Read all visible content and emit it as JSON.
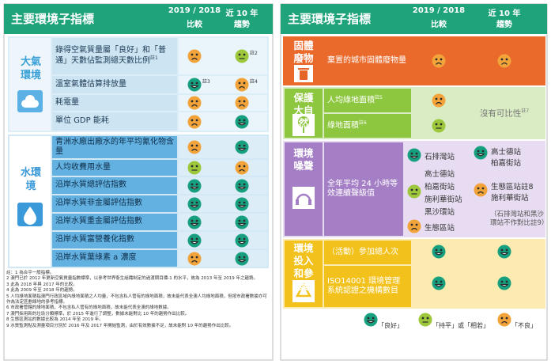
{
  "left": {
    "header": {
      "title": "主要環境子指標",
      "compare": "2019 / 2018",
      "compare_sub": "比較",
      "trend": "近 10 年",
      "trend_sub": "趨勢"
    },
    "sections": [
      {
        "label": "大氣環境",
        "rows": [
          {
            "text": "錄得空氣質量屬「良好」和「普通」天數佔監測總天數比例",
            "text_note": "註1",
            "compare": {
              "color": "#f2a33a"
            },
            "trend": {
              "color": "#9dc83c",
              "note": "註2"
            }
          },
          {
            "text": "溫室氣體估算排放量",
            "compare": {
              "color": "#17a07f",
              "note": "註3"
            },
            "trend": {
              "color": "#f2a33a",
              "note": "註4"
            }
          },
          {
            "text": "耗電量",
            "compare": {
              "color": "#f2a33a"
            },
            "trend": {
              "color": "#f2a33a"
            }
          },
          {
            "text": "單位 GDP 能耗",
            "compare": {
              "color": "#f2a33a"
            },
            "trend": {
              "color": "#17a07f"
            }
          }
        ]
      },
      {
        "label": "水環境",
        "rows": [
          {
            "text": "青洲水廠出廠水的年平均氰化物含量",
            "compare": {
              "color": "#f2a33a"
            },
            "trend": {
              "color": "#17a07f"
            }
          },
          {
            "text": "人均收費用水量",
            "compare": {
              "color": "#9dc83c"
            },
            "trend": {
              "color": "#f2a33a"
            }
          },
          {
            "text": "沿岸水質總評估指數",
            "compare": {
              "color": "#17a07f"
            },
            "trend": {
              "color": "#17a07f"
            }
          },
          {
            "text": "沿岸水質非金屬評估指數",
            "compare": {
              "color": "#17a07f"
            },
            "trend": {
              "color": "#17a07f"
            }
          },
          {
            "text": "沿岸水質重金屬評估指數",
            "compare": {
              "color": "#17a07f"
            },
            "trend": {
              "color": "#17a07f"
            }
          },
          {
            "text": "沿岸水質富營養化指數",
            "compare": {
              "color": "#17a07f"
            },
            "trend": {
              "color": "#17a07f"
            }
          },
          {
            "text": "沿岸水質葉綠素 a 濃度",
            "compare": {
              "color": "#f2a33a"
            },
            "trend": {
              "color": "#17a07f"
            }
          }
        ]
      }
    ],
    "notes": [
      "註：1 為合乎一般指標。",
      "2 澳門已於 2012 年更新空氣質量指數標準，以參考世界衞生組織制定的過渡期目標-1 的水平，故為 2013 年至 2019 年之趨勢。",
      "3 此為 2018 年與 2017 年的比較。",
      "4 此為 2009 年至 2018 年的趨勢。",
      "5 人均綠地面積指澳門行政區域內綠地面積之人均量，不包含私人管有的綠地面積，故未能代表全澳人均綠地面積，但按市政署數據亦可作為法定區劃綠地的參考指標。",
      "6 市政署管轄的綠地面積，不包含私人管有的綠地面積，故未能代表全澳的綠地數據。",
      "7 澳門採用新的垃圾分類標準，於 2015 年進行了調整，數據未能對比 10 年的趨勢作出比較。",
      "8 生態區測站的數據比較為 2014 年至 2019 年。",
      "9 水質監測點及測量項目分別於 2016 年及 2017 年開始監測，由於有效數據不足，故未能對 10 年的趨勢作出比較。"
    ]
  },
  "right": {
    "header": {
      "title": "主要環境子指標",
      "compare": "2019 / 2018",
      "compare_sub": "比較",
      "trend": "近 10 年",
      "trend_sub": "趨勢"
    },
    "sections": [
      {
        "label": "固體廢物",
        "rows": [
          {
            "text": "棄置的城市固體廢物量",
            "compare": {
              "color": "#f2a33a"
            },
            "trend": {
              "color": "#f2a33a"
            }
          }
        ]
      },
      {
        "label": "保護大自然",
        "rows": [
          {
            "text": "人均綠地面積",
            "text_note": "註5",
            "compare": {
              "color": "#f2a33a"
            }
          },
          {
            "text": "綠地面積",
            "text_note": "註6",
            "compare": {
              "color": "#9dc83c"
            }
          }
        ],
        "trend_span": {
          "text": "沒有可比性",
          "note": "註7"
        }
      },
      {
        "label": "環境噪聲",
        "rows": [
          {
            "text": "全年平均 24 小時等效連續聲級值",
            "compare_groups": [
              {
                "color": "#17a07f",
                "stations": [
                  "石排灣站"
                ]
              },
              {
                "color": "#9dc83c",
                "stations": [
                  "高士德站",
                  "柏嘉街站",
                  "施利華街站",
                  "黑沙環站"
                ]
              },
              {
                "color": "#f2a33a",
                "stations": [
                  "生態區站"
                ]
              }
            ],
            "trend_groups": [
              {
                "color": "#17a07f",
                "stations": [
                  "高士德站",
                  "柏嘉街站"
                ]
              },
              {
                "color": "#f2a33a",
                "stations": [
                  "生態區站註8",
                  "施利華街站"
                ]
              }
            ],
            "trend_remark": "（石排灣站和黑沙環站不作對比註9）"
          }
        ]
      },
      {
        "label": "環境投入和參與",
        "rows": [
          {
            "text": "（活動）參加總人次",
            "compare": {
              "color": "#17a07f"
            },
            "trend": {
              "color": "#17a07f"
            }
          },
          {
            "text": "ISO14001 環境管理系統認證之機構數目",
            "compare": {
              "color": "#17a07f"
            },
            "trend": {
              "color": "#17a07f"
            }
          }
        ]
      }
    ]
  },
  "legend": [
    {
      "color": "#17a07f",
      "label": "「良好」"
    },
    {
      "color": "#9dc83c",
      "label": "「持平」或「相若」"
    },
    {
      "color": "#f2a33a",
      "label": "「不良」"
    }
  ]
}
